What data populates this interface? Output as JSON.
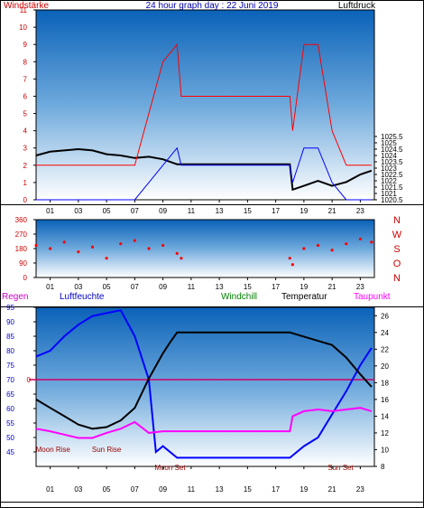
{
  "chart_data": [
    {
      "type": "line",
      "title": "24 hour graph day : 22 Juni 2019",
      "left_axis_label": "Windstärke",
      "right_axis_label": "Luftdruck",
      "ylim_left": [
        0,
        11
      ],
      "ylim_right": [
        1020.5,
        1035.5
      ],
      "left_ticks": [
        "0",
        "1",
        "2",
        "3",
        "4",
        "5",
        "6",
        "7",
        "8",
        "9",
        "10",
        "11"
      ],
      "right_ticks": [
        "1020.5",
        "1021",
        "1021.5",
        "1022",
        "1022.5",
        "1023",
        "1023.5",
        "1024",
        "1024.5",
        "1025",
        "1025.5"
      ],
      "x_ticks": [
        "01",
        "03",
        "05",
        "07",
        "09",
        "11",
        "13",
        "15",
        "17",
        "19",
        "21",
        "23"
      ],
      "xlim_hours": [
        0,
        24
      ],
      "series": [
        {
          "key": "pressure",
          "color": "#000000",
          "x": [
            0,
            1,
            2,
            3,
            4,
            5,
            6,
            7,
            8,
            9,
            10,
            10.3,
            18,
            18.2,
            19,
            20,
            21,
            22,
            23,
            23.8
          ],
          "y": [
            1024.0,
            1024.3,
            1024.4,
            1024.5,
            1024.4,
            1024.1,
            1024.0,
            1023.8,
            1023.9,
            1023.7,
            1023.3,
            1023.3,
            1023.3,
            1021.3,
            1021.6,
            1022.0,
            1021.6,
            1021.9,
            1022.5,
            1022.8
          ]
        },
        {
          "key": "gust",
          "color": "#ff0000",
          "x": [
            0,
            1,
            2,
            3,
            4,
            5,
            6,
            7,
            8,
            9,
            10,
            10.3,
            18,
            18.2,
            19,
            20,
            21,
            22,
            23,
            23.8
          ],
          "y": [
            2,
            2,
            2,
            2,
            2,
            2,
            2,
            2,
            5,
            8,
            9,
            6,
            6,
            4,
            9,
            9,
            4,
            2,
            2,
            2
          ]
        },
        {
          "key": "wind",
          "color": "#0000ff",
          "x": [
            0,
            1,
            2,
            3,
            4,
            5,
            6,
            7,
            8,
            9,
            10,
            10.3,
            18,
            18.2,
            19,
            20,
            21,
            22,
            23,
            23.8
          ],
          "y": [
            0,
            0,
            0,
            0,
            0,
            0,
            0,
            0,
            1,
            2,
            3,
            2,
            2,
            1,
            3,
            3,
            1,
            0,
            0,
            0
          ]
        }
      ]
    },
    {
      "type": "scatter",
      "direction_labels": [
        "N",
        "W",
        "S",
        "O",
        "N"
      ],
      "ylim": [
        0,
        360
      ],
      "y_ticks": [
        "0",
        "90",
        "180",
        "270",
        "360"
      ],
      "x_ticks": [
        "01",
        "03",
        "05",
        "07",
        "09",
        "11",
        "13",
        "15",
        "17",
        "19",
        "21",
        "23"
      ],
      "series": [
        {
          "key": "direction",
          "color": "#ff0000",
          "x": [
            0,
            1,
            2,
            3,
            4,
            5,
            6,
            7,
            8,
            9,
            10,
            10.3,
            18,
            18.2,
            19,
            20,
            21,
            22,
            23,
            23.8
          ],
          "y": [
            200,
            180,
            220,
            160,
            190,
            120,
            210,
            230,
            180,
            200,
            150,
            120,
            120,
            80,
            180,
            200,
            170,
            210,
            240,
            220
          ]
        }
      ]
    },
    {
      "type": "line",
      "header_labels": [
        "Regen",
        "Luftfeuchte",
        "Windchill",
        "Temperatur",
        "Taupunkt"
      ],
      "header_colors": [
        "#cc00cc",
        "#0000cc",
        "#008000",
        "#000000",
        "#ff00ff"
      ],
      "ylim_left": [
        40,
        95
      ],
      "left_ticks": [
        "45",
        "50",
        "55",
        "60",
        "65",
        "70",
        "75",
        "80",
        "85",
        "90",
        "95"
      ],
      "ylim_right": [
        8,
        27
      ],
      "right_ticks": [
        "8",
        "10",
        "12",
        "14",
        "16",
        "18",
        "20",
        "22",
        "24",
        "26"
      ],
      "rain_marker": "0",
      "x_ticks": [
        "01",
        "03",
        "05",
        "07",
        "09",
        "11",
        "13",
        "15",
        "17",
        "19",
        "21",
        "23"
      ],
      "annotations": [
        {
          "text": "Sun Rise",
          "hour": 5.0
        },
        {
          "text": "Moon Set",
          "hour": 9.5
        },
        {
          "text": "Moon Rise",
          "hour": 1.2
        },
        {
          "text": "Sun Set",
          "hour": 21.6
        }
      ],
      "series": [
        {
          "key": "humidity",
          "color": "#0000ff",
          "axis": "left",
          "x": [
            0,
            1,
            2,
            3,
            4,
            5,
            6,
            7,
            8,
            8.5,
            9,
            10,
            18,
            19,
            20,
            21,
            22,
            23,
            23.8
          ],
          "y": [
            78,
            80,
            85,
            89,
            92,
            93,
            94,
            85,
            70,
            45,
            47,
            43,
            43,
            47,
            50,
            58,
            66,
            75,
            81
          ]
        },
        {
          "key": "temperature",
          "color": "#000000",
          "axis": "right",
          "x": [
            0,
            1,
            2,
            3,
            4,
            5,
            6,
            7,
            8,
            9,
            9.5,
            10,
            18,
            19,
            20,
            21,
            22,
            23,
            23.8
          ],
          "y": [
            16,
            15,
            14,
            13,
            12.5,
            12.7,
            13.5,
            15,
            18.5,
            21.5,
            22.8,
            24,
            24,
            23.5,
            23,
            22.5,
            21,
            19,
            17.5
          ]
        },
        {
          "key": "dewpoint",
          "color": "#ff00ff",
          "axis": "right",
          "x": [
            0,
            1,
            2,
            3,
            4,
            5,
            6,
            7,
            8,
            9,
            10,
            18,
            18.2,
            19,
            20,
            21,
            22,
            23,
            23.8
          ],
          "y": [
            12.5,
            12.2,
            11.8,
            11.4,
            11.4,
            12,
            12.5,
            13.3,
            12,
            12.2,
            12.2,
            12.2,
            14,
            14.6,
            14.8,
            14.6,
            14.8,
            15,
            14.6
          ]
        }
      ]
    }
  ]
}
